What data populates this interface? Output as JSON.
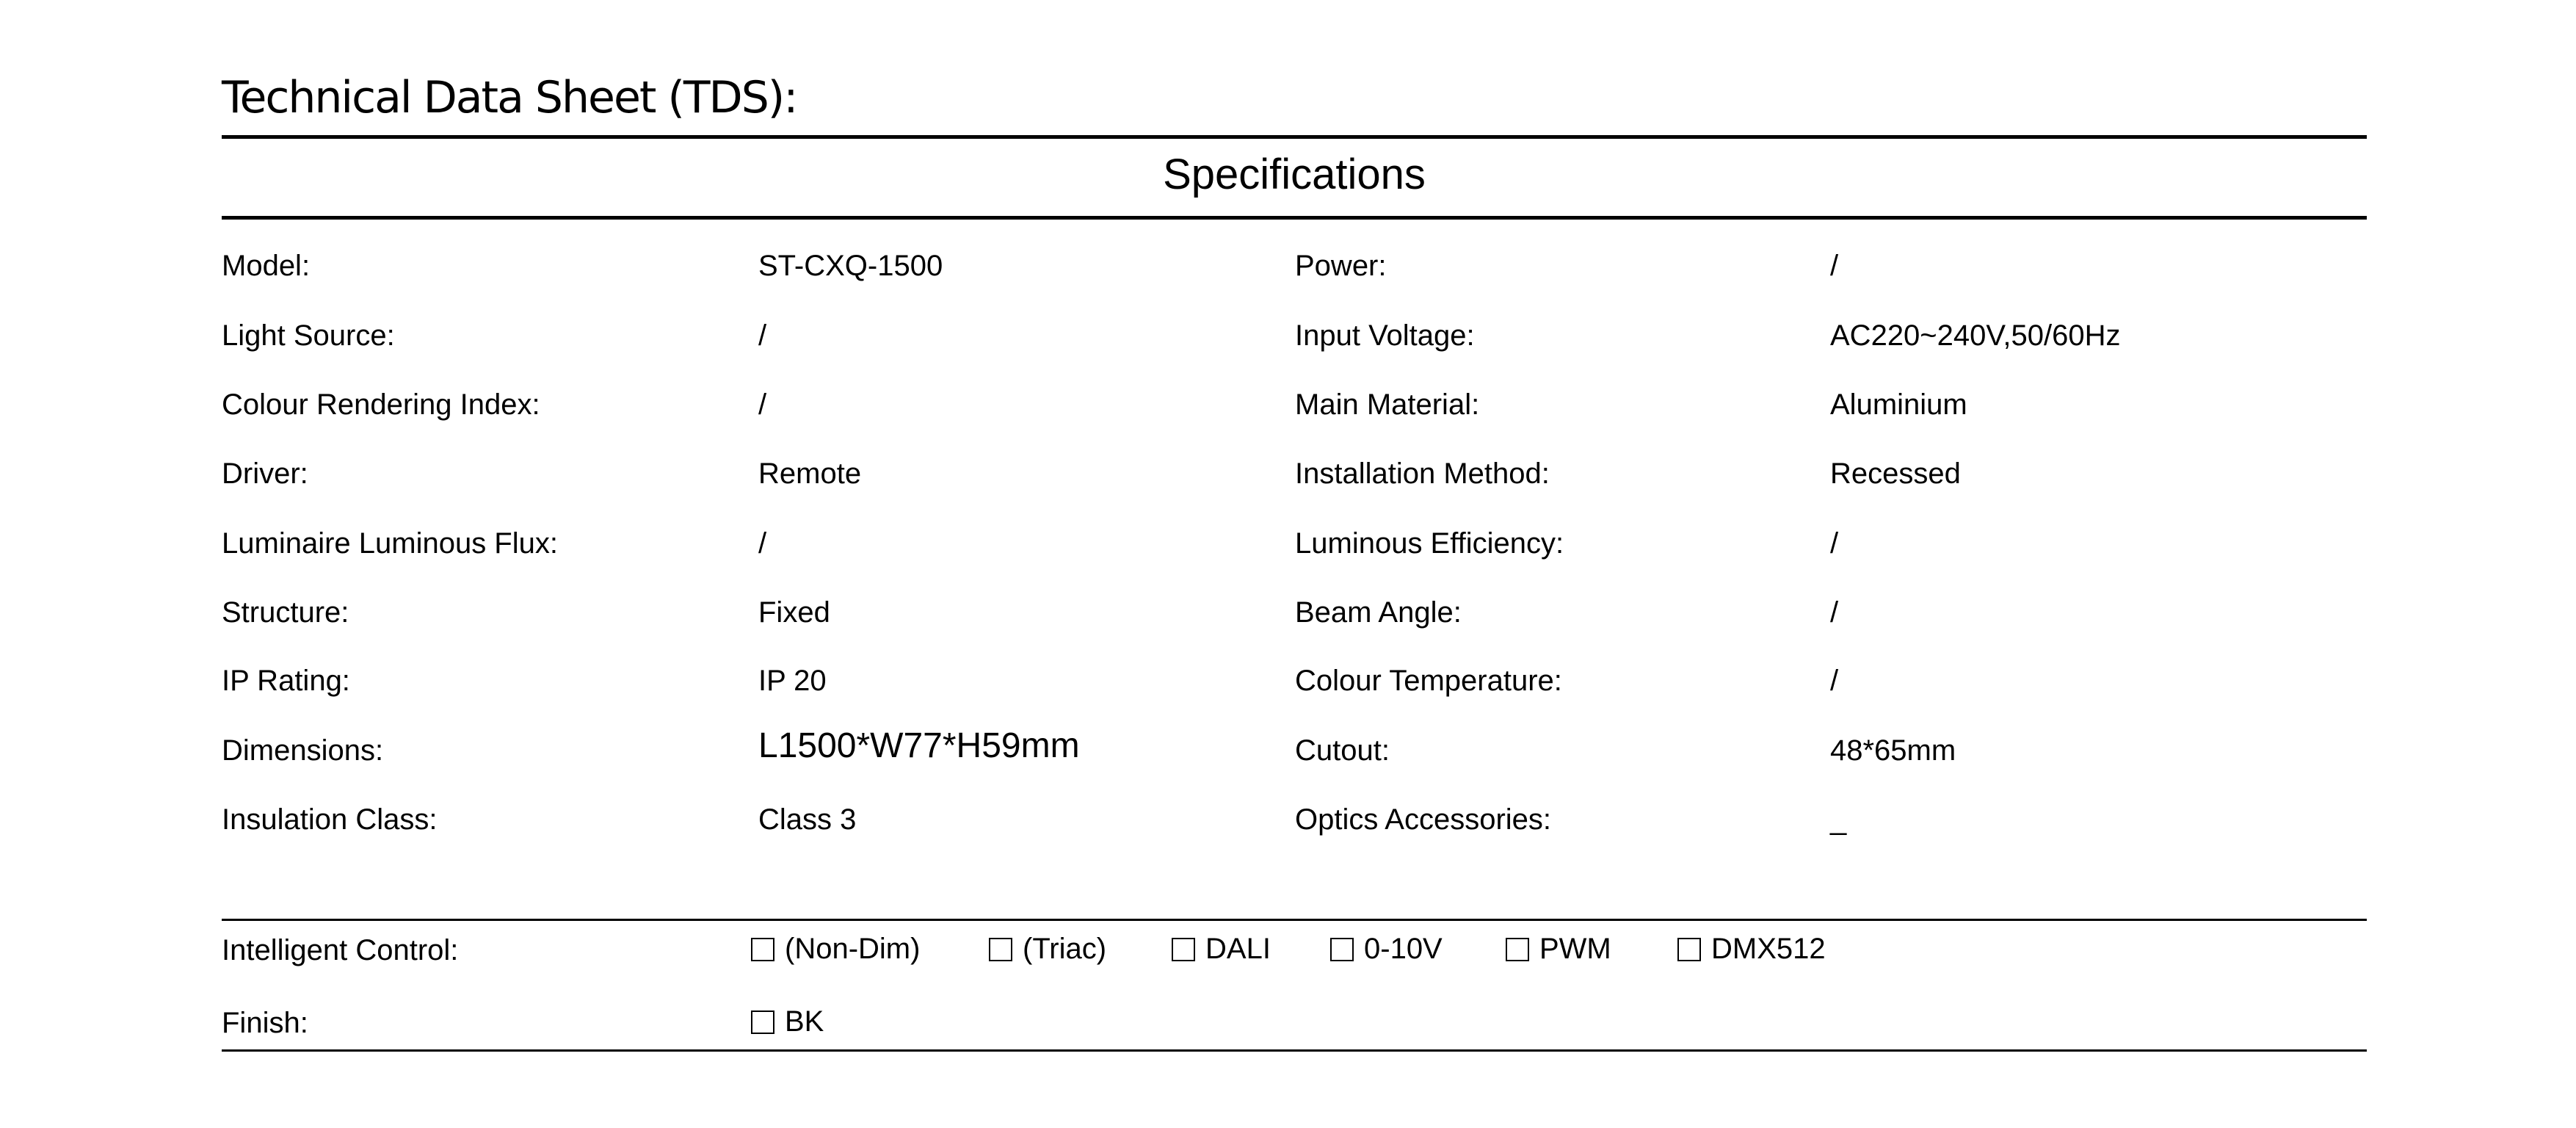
{
  "header": {
    "title": "Technical Data Sheet (TDS):",
    "section": "Specifications"
  },
  "specs": [
    {
      "label": "Model:",
      "value": "ST-CXQ-1500",
      "label2": "Power:",
      "value2": "/"
    },
    {
      "label": "Light Source:",
      "value": "/",
      "label2": "Input Voltage:",
      "value2": "AC220~240V,50/60Hz"
    },
    {
      "label": "Colour Rendering Index:",
      "value": "/",
      "label2": "Main Material:",
      "value2": "Aluminium"
    },
    {
      "label": "Driver:",
      "value": "Remote",
      "label2": "Installation Method:",
      "value2": "Recessed"
    },
    {
      "label": "Luminaire Luminous Flux:",
      "value": "/",
      "label2": "Luminous Efficiency:",
      "value2": "/"
    },
    {
      "label": "Structure:",
      "value": "Fixed",
      "label2": "Beam Angle:",
      "value2": "/"
    },
    {
      "label": "IP Rating:",
      "value": "IP 20",
      "label2": "Colour Temperature:",
      "value2": "/"
    },
    {
      "label": "Dimensions:",
      "value": "L1500*W77*H59mm",
      "label2": "Cutout:",
      "value2": "48*65mm"
    },
    {
      "label": "Insulation Class:",
      "value": "Class 3",
      "label2": "Optics Accessories:",
      "value2": "_"
    }
  ],
  "control": {
    "label": "Intelligent Control:",
    "options": [
      {
        "label": "(Non-Dim)",
        "checked": false
      },
      {
        "label": "(Triac)",
        "checked": false
      },
      {
        "label": "DALI",
        "checked": false
      },
      {
        "label": "0-10V",
        "checked": false
      },
      {
        "label": "PWM",
        "checked": false
      },
      {
        "label": "DMX512",
        "checked": false
      }
    ]
  },
  "finish": {
    "label": "Finish:",
    "options": [
      {
        "label": "BK",
        "checked": false
      }
    ]
  }
}
